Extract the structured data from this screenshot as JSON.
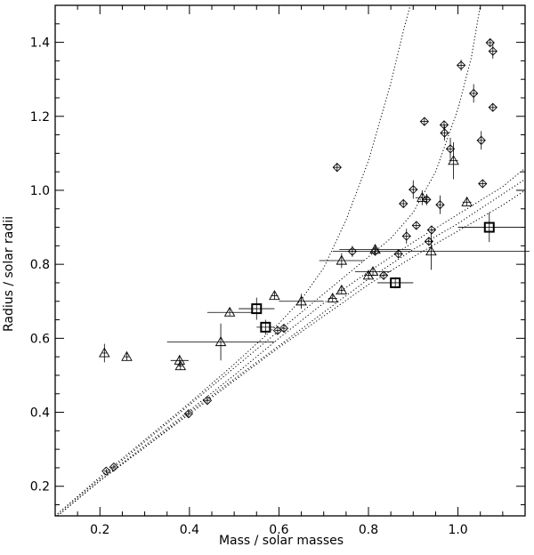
{
  "chart_data": {
    "type": "scatter",
    "xlabel": "Mass / solar masses",
    "ylabel": "Radius / solar radii",
    "xlim": [
      0.1,
      1.15
    ],
    "ylim": [
      0.12,
      1.5
    ],
    "xticks": [
      0.2,
      0.4,
      0.6,
      0.8,
      1.0
    ],
    "xtick_labels": [
      "0.2",
      "0.4",
      "0.6",
      "0.8",
      "1.0"
    ],
    "yticks": [
      0.2,
      0.4,
      0.6,
      0.8,
      1.0,
      1.2,
      1.4
    ],
    "ytick_labels": [
      "0.2",
      "0.4",
      "0.6",
      "0.8",
      "1.0",
      "1.2",
      "1.4"
    ],
    "grid": false,
    "series": [
      {
        "marker": "diamond",
        "points": [
          {
            "x": 0.214,
            "y": 0.241,
            "xerr": 0.005,
            "yerr": 0.006
          },
          {
            "x": 0.231,
            "y": 0.252,
            "xerr": 0.005,
            "yerr": 0.006
          },
          {
            "x": 0.398,
            "y": 0.396,
            "xerr": 0.006,
            "yerr": 0.008
          },
          {
            "x": 0.44,
            "y": 0.432,
            "xerr": 0.006,
            "yerr": 0.008
          },
          {
            "x": 0.597,
            "y": 0.621,
            "xerr": 0.006,
            "yerr": 0.01
          },
          {
            "x": 0.611,
            "y": 0.627,
            "xerr": 0.006,
            "yerr": 0.01
          },
          {
            "x": 0.73,
            "y": 1.062,
            "xerr": 0.008,
            "yerr": 0.012
          },
          {
            "x": 0.764,
            "y": 0.835,
            "xerr": 0.008,
            "yerr": 0.015
          },
          {
            "x": 0.815,
            "y": 0.835,
            "xerr": 0.008,
            "yerr": 0.01
          },
          {
            "x": 0.834,
            "y": 0.77,
            "xerr": 0.008,
            "yerr": 0.012
          },
          {
            "x": 0.867,
            "y": 0.828,
            "xerr": 0.008,
            "yerr": 0.01
          },
          {
            "x": 0.878,
            "y": 0.964,
            "xerr": 0.008,
            "yerr": 0.01
          },
          {
            "x": 0.885,
            "y": 0.876,
            "xerr": 0.008,
            "yerr": 0.02
          },
          {
            "x": 0.9,
            "y": 1.002,
            "xerr": 0.01,
            "yerr": 0.025
          },
          {
            "x": 0.907,
            "y": 0.905,
            "xerr": 0.008,
            "yerr": 0.01
          },
          {
            "x": 0.925,
            "y": 1.186,
            "xerr": 0.008,
            "yerr": 0.01
          },
          {
            "x": 0.93,
            "y": 0.975,
            "xerr": 0.008,
            "yerr": 0.015
          },
          {
            "x": 0.935,
            "y": 0.862,
            "xerr": 0.008,
            "yerr": 0.01
          },
          {
            "x": 0.941,
            "y": 0.893,
            "xerr": 0.008,
            "yerr": 0.01
          },
          {
            "x": 0.96,
            "y": 0.961,
            "xerr": 0.008,
            "yerr": 0.025
          },
          {
            "x": 0.969,
            "y": 1.177,
            "xerr": 0.008,
            "yerr": 0.01
          },
          {
            "x": 0.97,
            "y": 1.155,
            "xerr": 0.008,
            "yerr": 0.02
          },
          {
            "x": 0.983,
            "y": 1.112,
            "xerr": 0.008,
            "yerr": 0.03
          },
          {
            "x": 1.007,
            "y": 1.338,
            "xerr": 0.008,
            "yerr": 0.015
          },
          {
            "x": 1.035,
            "y": 1.262,
            "xerr": 0.008,
            "yerr": 0.025
          },
          {
            "x": 1.052,
            "y": 1.135,
            "xerr": 0.008,
            "yerr": 0.025
          },
          {
            "x": 1.055,
            "y": 1.018,
            "xerr": 0.008,
            "yerr": 0.01
          },
          {
            "x": 1.072,
            "y": 1.399,
            "xerr": 0.008,
            "yerr": 0.01
          },
          {
            "x": 1.078,
            "y": 1.376,
            "xerr": 0.008,
            "yerr": 0.02
          },
          {
            "x": 1.078,
            "y": 1.224,
            "xerr": 0.008,
            "yerr": 0.01
          }
        ]
      },
      {
        "marker": "triangle",
        "points": [
          {
            "x": 0.21,
            "y": 0.56,
            "xerr": 0.005,
            "yerr": 0.025
          },
          {
            "x": 0.26,
            "y": 0.55,
            "xerr": 0.005,
            "yerr": 0.01
          },
          {
            "x": 0.378,
            "y": 0.54,
            "xerr": 0.02,
            "yerr": 0.015
          },
          {
            "x": 0.38,
            "y": 0.525,
            "xerr": 0.005,
            "yerr": 0.01
          },
          {
            "x": 0.47,
            "y": 0.59,
            "xerr": 0.12,
            "yerr": 0.05
          },
          {
            "x": 0.49,
            "y": 0.67,
            "xerr": 0.05,
            "yerr": 0.01
          },
          {
            "x": 0.59,
            "y": 0.715,
            "xerr": 0.008,
            "yerr": 0.01
          },
          {
            "x": 0.65,
            "y": 0.7,
            "xerr": 0.05,
            "yerr": 0.02
          },
          {
            "x": 0.72,
            "y": 0.708,
            "xerr": 0.01,
            "yerr": 0.01
          },
          {
            "x": 0.74,
            "y": 0.81,
            "xerr": 0.05,
            "yerr": 0.02
          },
          {
            "x": 0.74,
            "y": 0.73,
            "xerr": 0.008,
            "yerr": 0.01
          },
          {
            "x": 0.8,
            "y": 0.77,
            "xerr": 0.01,
            "yerr": 0.01
          },
          {
            "x": 0.81,
            "y": 0.78,
            "xerr": 0.04,
            "yerr": 0.01
          },
          {
            "x": 0.815,
            "y": 0.84,
            "xerr": 0.08,
            "yerr": 0.01
          },
          {
            "x": 0.92,
            "y": 0.98,
            "xerr": 0.015,
            "yerr": 0.02
          },
          {
            "x": 0.94,
            "y": 0.835,
            "xerr": 0.22,
            "yerr": 0.05
          },
          {
            "x": 0.99,
            "y": 1.08,
            "xerr": 0.01,
            "yerr": 0.05
          },
          {
            "x": 1.02,
            "y": 0.968,
            "xerr": 0.01,
            "yerr": 0.01
          }
        ]
      },
      {
        "marker": "square",
        "points": [
          {
            "x": 0.55,
            "y": 0.68,
            "xerr": 0.04,
            "yerr": 0.03
          },
          {
            "x": 0.57,
            "y": 0.63,
            "xerr": 0.02,
            "yerr": 0.02
          },
          {
            "x": 0.86,
            "y": 0.75,
            "xerr": 0.04,
            "yerr": 0.015
          },
          {
            "x": 1.07,
            "y": 0.9,
            "xerr": 0.07,
            "yerr": 0.04
          }
        ]
      }
    ],
    "model_curves": [
      {
        "line": "dotted",
        "points": [
          [
            0.1,
            0.12
          ],
          [
            0.2,
            0.225
          ],
          [
            0.3,
            0.325
          ],
          [
            0.4,
            0.425
          ],
          [
            0.5,
            0.53
          ],
          [
            0.6,
            0.64
          ],
          [
            0.65,
            0.705
          ],
          [
            0.7,
            0.79
          ],
          [
            0.75,
            0.92
          ],
          [
            0.8,
            1.08
          ],
          [
            0.85,
            1.29
          ],
          [
            0.88,
            1.44
          ],
          [
            0.9,
            1.53
          ]
        ]
      },
      {
        "line": "dotted",
        "points": [
          [
            0.1,
            0.12
          ],
          [
            0.2,
            0.22
          ],
          [
            0.3,
            0.32
          ],
          [
            0.4,
            0.42
          ],
          [
            0.5,
            0.52
          ],
          [
            0.6,
            0.62
          ],
          [
            0.7,
            0.72
          ],
          [
            0.8,
            0.82
          ],
          [
            0.85,
            0.87
          ],
          [
            0.9,
            0.94
          ],
          [
            0.95,
            1.05
          ],
          [
            1.0,
            1.22
          ],
          [
            1.03,
            1.36
          ],
          [
            1.05,
            1.5
          ]
        ]
      },
      {
        "line": "dotted",
        "points": [
          [
            0.1,
            0.115
          ],
          [
            0.2,
            0.215
          ],
          [
            0.3,
            0.31
          ],
          [
            0.4,
            0.405
          ],
          [
            0.5,
            0.5
          ],
          [
            0.6,
            0.6
          ],
          [
            0.7,
            0.695
          ],
          [
            0.8,
            0.78
          ],
          [
            0.9,
            0.86
          ],
          [
            1.0,
            0.935
          ],
          [
            1.1,
            1.01
          ],
          [
            1.15,
            1.06
          ]
        ]
      },
      {
        "line": "dotted",
        "points": [
          [
            0.1,
            0.115
          ],
          [
            0.2,
            0.215
          ],
          [
            0.3,
            0.305
          ],
          [
            0.4,
            0.4
          ],
          [
            0.5,
            0.49
          ],
          [
            0.6,
            0.58
          ],
          [
            0.7,
            0.67
          ],
          [
            0.8,
            0.76
          ],
          [
            0.9,
            0.84
          ],
          [
            1.0,
            0.91
          ],
          [
            1.1,
            0.99
          ],
          [
            1.15,
            1.03
          ]
        ]
      },
      {
        "line": "dotted",
        "points": [
          [
            0.1,
            0.115
          ],
          [
            0.2,
            0.215
          ],
          [
            0.3,
            0.305
          ],
          [
            0.4,
            0.395
          ],
          [
            0.5,
            0.485
          ],
          [
            0.6,
            0.575
          ],
          [
            0.7,
            0.66
          ],
          [
            0.8,
            0.745
          ],
          [
            0.9,
            0.82
          ],
          [
            1.0,
            0.89
          ],
          [
            1.1,
            0.96
          ],
          [
            1.15,
            1.0
          ]
        ]
      }
    ]
  }
}
